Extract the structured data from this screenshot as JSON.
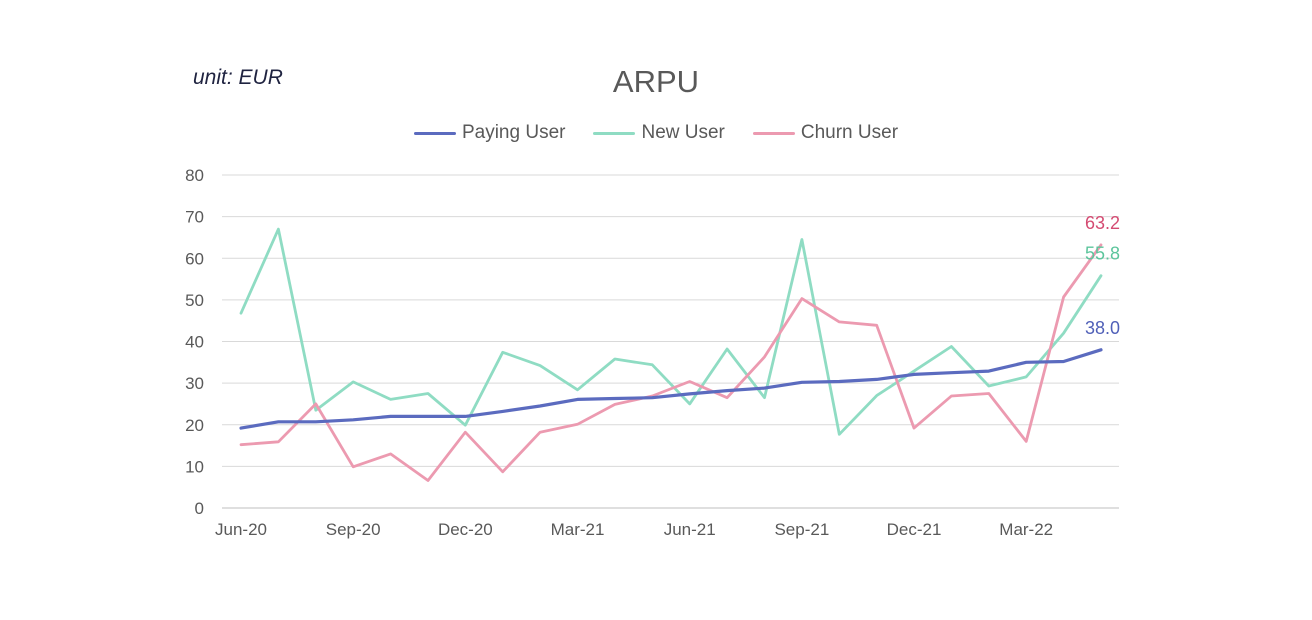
{
  "unit_label": "unit: EUR",
  "chart_data": {
    "type": "line",
    "title": "ARPU",
    "xlabel": "",
    "ylabel": "",
    "ylim": [
      0,
      80
    ],
    "yticks": [
      0,
      10,
      20,
      30,
      40,
      50,
      60,
      70,
      80
    ],
    "grid": true,
    "legend_position": "top",
    "x": [
      "Jun-20",
      "Jul-20",
      "Aug-20",
      "Sep-20",
      "Oct-20",
      "Nov-20",
      "Dec-20",
      "Jan-21",
      "Feb-21",
      "Mar-21",
      "Apr-21",
      "May-21",
      "Jun-21",
      "Jul-21",
      "Aug-21",
      "Sep-21",
      "Oct-21",
      "Nov-21",
      "Dec-21",
      "Jan-22",
      "Feb-22",
      "Mar-22",
      "Apr-22",
      "May-22"
    ],
    "xtick_labels": [
      {
        "index": 0,
        "label": "Jun-20"
      },
      {
        "index": 3,
        "label": "Sep-20"
      },
      {
        "index": 6,
        "label": "Dec-20"
      },
      {
        "index": 9,
        "label": "Mar-21"
      },
      {
        "index": 12,
        "label": "Jun-21"
      },
      {
        "index": 15,
        "label": "Sep-21"
      },
      {
        "index": 18,
        "label": "Dec-21"
      },
      {
        "index": 21,
        "label": "Mar-22"
      }
    ],
    "series": [
      {
        "name": "Paying User",
        "color": "#5b6bbf",
        "values": [
          19.2,
          20.7,
          20.7,
          21.2,
          22.0,
          22.0,
          22.0,
          23.2,
          24.5,
          26.1,
          26.3,
          26.5,
          27.4,
          28.2,
          28.8,
          30.2,
          30.4,
          30.9,
          32.1,
          32.5,
          32.9,
          35.0,
          35.2,
          38.0
        ],
        "end_label": "38.0"
      },
      {
        "name": "New User",
        "color": "#8fdcc3",
        "values": [
          46.8,
          67.0,
          23.5,
          30.3,
          26.1,
          27.5,
          19.9,
          37.4,
          34.2,
          28.4,
          35.8,
          34.4,
          25.0,
          38.2,
          26.5,
          64.5,
          17.7,
          27.0,
          32.9,
          38.8,
          29.3,
          31.5,
          42.0,
          55.8
        ],
        "end_label": "55.8"
      },
      {
        "name": "Churn User",
        "color": "#ec9ab0",
        "values": [
          15.2,
          15.9,
          25.0,
          9.9,
          13.0,
          6.6,
          18.2,
          8.7,
          18.2,
          20.1,
          24.9,
          26.9,
          30.4,
          26.5,
          36.3,
          50.3,
          44.7,
          43.9,
          19.2,
          26.9,
          27.5,
          16.0,
          50.7,
          63.2
        ],
        "end_label": "63.2"
      }
    ],
    "end_label_colors": {
      "Paying User": "#5060b8",
      "New User": "#5cc59c",
      "Churn User": "#d44b72"
    }
  }
}
